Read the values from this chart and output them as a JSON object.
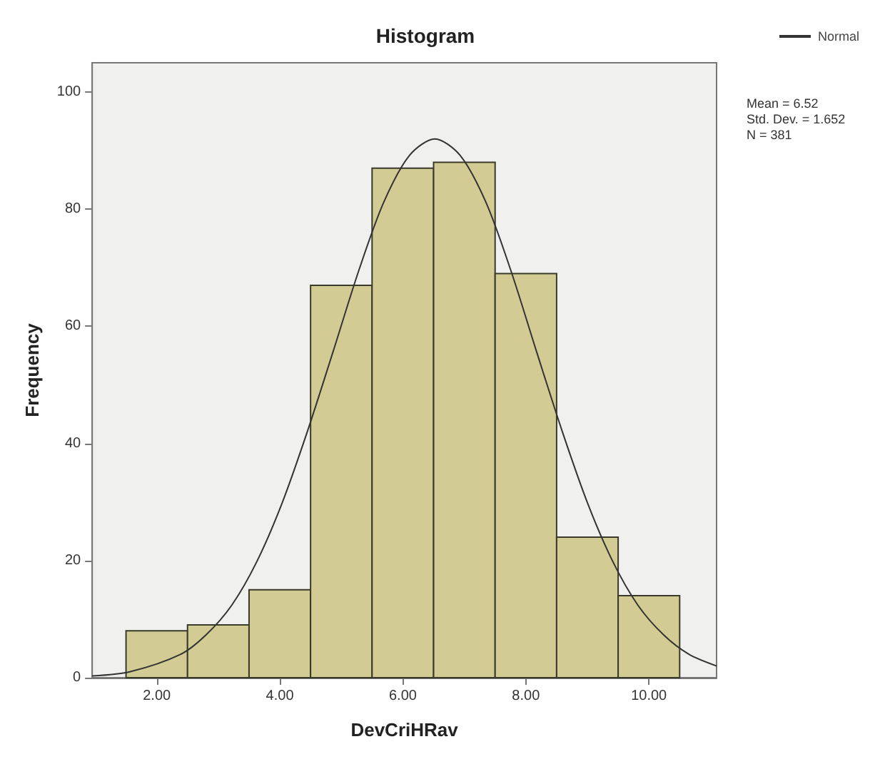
{
  "chart_data": {
    "type": "histogram",
    "title": "Histogram",
    "xlabel": "DevCriHRav",
    "ylabel": "Frequency",
    "bins": [
      1.5,
      2.5,
      3.5,
      4.5,
      5.5,
      6.5,
      7.5,
      8.5,
      9.5,
      10.5
    ],
    "values": [
      8,
      9,
      15,
      67,
      87,
      88,
      69,
      24,
      14
    ],
    "color": "#d2cc94",
    "series": [
      {
        "name": "Normal",
        "type": "line",
        "color": "#333333",
        "x": [
          0.95,
          1.56,
          2.39,
          2.8,
          3.22,
          3.63,
          4.04,
          4.45,
          4.87,
          5.28,
          5.69,
          6.11,
          6.52,
          6.93,
          7.35,
          7.76,
          8.17,
          8.59,
          9.0,
          9.41,
          9.82,
          10.24,
          10.65,
          11.1
        ],
        "values": [
          0.3,
          1.0,
          4.0,
          7.3,
          12.4,
          19.9,
          29.9,
          42.1,
          55.8,
          69.4,
          81.2,
          89.2,
          92,
          89.2,
          81.2,
          69.4,
          55.8,
          42.1,
          29.9,
          19.9,
          12.4,
          7.3,
          4.0,
          2.0
        ]
      }
    ],
    "xlim": [
      0.95,
      11.1
    ],
    "ylim": [
      0,
      105
    ],
    "xticks": [
      {
        "value": 2,
        "label": "2.00"
      },
      {
        "value": 4,
        "label": "4.00"
      },
      {
        "value": 6,
        "label": "6.00"
      },
      {
        "value": 8,
        "label": "8.00"
      },
      {
        "value": 10,
        "label": "10.00"
      }
    ],
    "yticks": [
      0,
      20,
      40,
      60,
      80,
      100
    ],
    "annotations": [
      "Mean = 6.52",
      "Std. Dev. = 1.652",
      "N = 381"
    ],
    "legend": "top right",
    "marker": "none",
    "grid": false
  }
}
